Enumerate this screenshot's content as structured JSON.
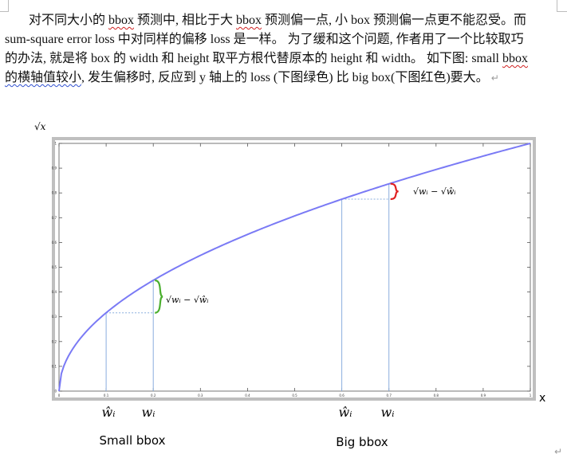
{
  "paragraph": {
    "p1_text_a": "对不同大小的 ",
    "p1_bbox_a": "bbox",
    "p1_text_b": " 预测中, 相比于大 ",
    "p1_bbox_b": "bbox",
    "p1_text_c": " 预测偏一点, 小 box 预测偏一点更不能忍受。而 sum-square error loss 中对同样的偏移 loss 是一样。 为了缓和这个问题, 作者用了一个比较取巧的办法, 就是将 box 的 width 和 height 取平方根代替原本的 height 和 width。 如下图: small ",
    "p1_bbox_c": "bbox",
    "p1_text_d": " 的横轴值较小",
    "p1_text_e": ", 发生偏移时, 反应到 y 轴上的 loss (下图绿色) 比 big  box(下图红色)要大。",
    "return_mark": "↵"
  },
  "figure": {
    "y_axis_symbol": "√x",
    "x_axis_symbol": "x",
    "small_hat_label": "ŵᵢ",
    "small_w_label": "wᵢ",
    "big_hat_label": "ŵᵢ",
    "big_w_label": "wᵢ",
    "small_caption": "Small bbox",
    "big_caption": "Big bbox",
    "small_brace_label": "√wᵢ − √ŵᵢ",
    "big_brace_label": "√wᵢ − √ŵᵢ",
    "colors": {
      "curve": "#7a7af5",
      "small_brace": "#4caf30",
      "big_brace": "#e02020",
      "guide": "#8aaede",
      "frame": "#bfbfbf"
    }
  },
  "chart_data": {
    "type": "line",
    "xlabel": "x",
    "ylabel": "√x",
    "xlim": [
      0,
      1
    ],
    "ylim": [
      0,
      1
    ],
    "x_ticks": [
      "0",
      "0.1",
      "0.2",
      "0.3",
      "0.4",
      "0.5",
      "0.6",
      "0.7",
      "0.8",
      "0.9",
      "1"
    ],
    "y_ticks": [
      "0",
      "0.1",
      "0.2",
      "0.3",
      "0.4",
      "0.5",
      "0.6",
      "0.7",
      "0.8",
      "0.9",
      "1"
    ],
    "curve": "y = sqrt(x)",
    "markers": [
      {
        "label": "ŵᵢ",
        "x": 0.1,
        "y": 0.316,
        "group": "Small bbox"
      },
      {
        "label": "wᵢ",
        "x": 0.2,
        "y": 0.447,
        "group": "Small bbox"
      },
      {
        "label": "ŵᵢ",
        "x": 0.6,
        "y": 0.775,
        "group": "Big bbox"
      },
      {
        "label": "wᵢ",
        "x": 0.7,
        "y": 0.837,
        "group": "Big bbox"
      }
    ],
    "grid": false
  },
  "footer": {
    "return_mark": "↵"
  }
}
